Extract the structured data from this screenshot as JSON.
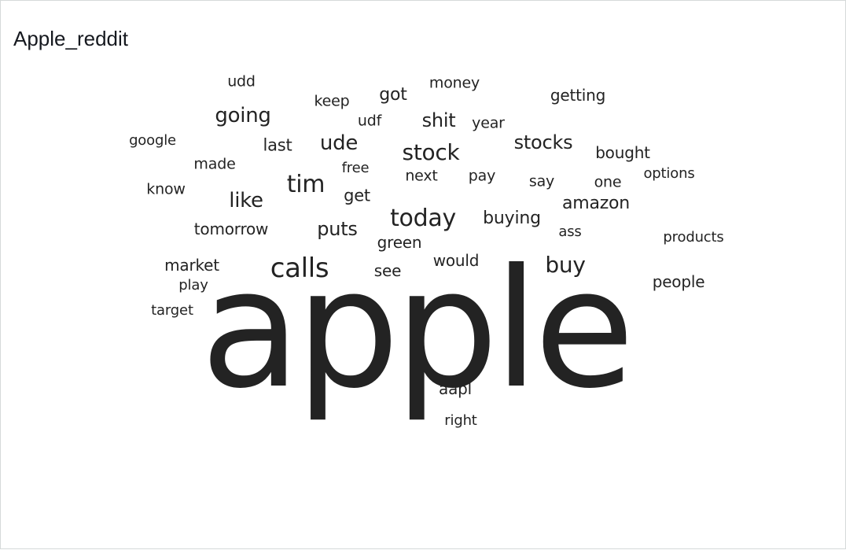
{
  "visual": {
    "title": "Apple_reddit",
    "colors": {
      "text": "#232323",
      "border": "#d5d9d9",
      "background": "#ffffff"
    }
  },
  "chart_data": {
    "type": "wordcloud",
    "title": "Apple_reddit",
    "words": [
      {
        "text": "apple",
        "weight": 100
      },
      {
        "text": "calls",
        "weight": 18
      },
      {
        "text": "today",
        "weight": 16
      },
      {
        "text": "stock",
        "weight": 15
      },
      {
        "text": "buy",
        "weight": 15
      },
      {
        "text": "tim",
        "weight": 15
      },
      {
        "text": "going",
        "weight": 14
      },
      {
        "text": "ude",
        "weight": 14
      },
      {
        "text": "stocks",
        "weight": 13
      },
      {
        "text": "like",
        "weight": 13
      },
      {
        "text": "puts",
        "weight": 13
      },
      {
        "text": "shit",
        "weight": 13
      },
      {
        "text": "got",
        "weight": 12
      },
      {
        "text": "amazon",
        "weight": 12
      },
      {
        "text": "buying",
        "weight": 12
      },
      {
        "text": "last",
        "weight": 11
      },
      {
        "text": "get",
        "weight": 11
      },
      {
        "text": "aapl",
        "weight": 10
      },
      {
        "text": "tomorrow",
        "weight": 10
      },
      {
        "text": "market",
        "weight": 10
      },
      {
        "text": "people",
        "weight": 10
      },
      {
        "text": "would",
        "weight": 10
      },
      {
        "text": "green",
        "weight": 10
      },
      {
        "text": "see",
        "weight": 10
      },
      {
        "text": "bought",
        "weight": 10
      },
      {
        "text": "getting",
        "weight": 10
      },
      {
        "text": "money",
        "weight": 10
      },
      {
        "text": "keep",
        "weight": 10
      },
      {
        "text": "next",
        "weight": 10
      },
      {
        "text": "pay",
        "weight": 10
      },
      {
        "text": "say",
        "weight": 10
      },
      {
        "text": "one",
        "weight": 10
      },
      {
        "text": "year",
        "weight": 10
      },
      {
        "text": "made",
        "weight": 10
      },
      {
        "text": "know",
        "weight": 10
      },
      {
        "text": "udd",
        "weight": 10
      },
      {
        "text": "udf",
        "weight": 10
      },
      {
        "text": "play",
        "weight": 9
      },
      {
        "text": "target",
        "weight": 9
      },
      {
        "text": "products",
        "weight": 9
      },
      {
        "text": "options",
        "weight": 9
      },
      {
        "text": "google",
        "weight": 9
      },
      {
        "text": "free",
        "weight": 9
      },
      {
        "text": "ass",
        "weight": 9
      },
      {
        "text": "right",
        "weight": 9
      }
    ]
  }
}
